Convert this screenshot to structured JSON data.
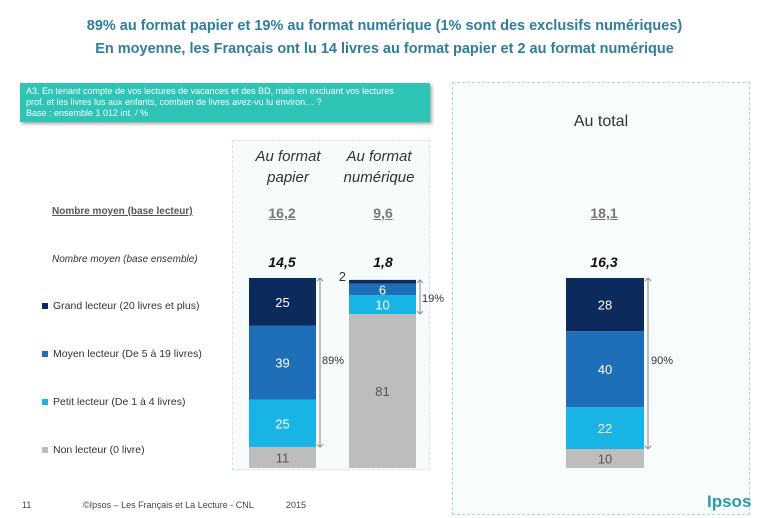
{
  "header": {
    "title_line1": "89% au format papier et 19% au format numérique (1% sont des exclusifs numériques)",
    "title_line2": "En moyenne, les Français ont lu 14 livres au format papier et 2 au format numérique"
  },
  "question": {
    "line1": "A3. En tenant compte de vos lectures de vacances et des BD, mais en excluant vos lectures",
    "line2": "prof. et les livres lus aux enfants, combien de livres avez-vu lu environ… ?",
    "line3": "Base : ensemble 1 012 int. / %"
  },
  "total_panel_title": "Au total",
  "row_labels": {
    "avg_reader": "Nombre moyen (base lecteur)",
    "avg_all": "Nombre moyen (base ensemble)"
  },
  "columns": [
    {
      "line1": "Au format",
      "line2": "papier",
      "avg_reader": "16,2",
      "avg_all": "14,5"
    },
    {
      "line1": "Au format",
      "line2": "numérique",
      "avg_reader": "9,6",
      "avg_all": "1,8"
    },
    {
      "line1": "",
      "line2": "",
      "avg_reader": "18,1",
      "avg_all": "16,3"
    }
  ],
  "legend": [
    {
      "label": "Grand lecteur (20 livres et plus)",
      "color": "#0d2a5c"
    },
    {
      "label": "Moyen lecteur (De 5 à 19 livres)",
      "color": "#1f6fb8"
    },
    {
      "label": "Petit lecteur (De 1 à 4 livres)",
      "color": "#19b4e6"
    },
    {
      "label": "Non lecteur (0 livre)",
      "color": "#bdbdbd"
    }
  ],
  "chart_data": {
    "type": "bar",
    "stacked": true,
    "categories": [
      "Au format papier",
      "Au format numérique",
      "Au total"
    ],
    "series": [
      {
        "name": "Non lecteur (0 livre)",
        "values": [
          11,
          81,
          10
        ],
        "color": "#bdbdbd"
      },
      {
        "name": "Petit lecteur (De 1 à 4 livres)",
        "values": [
          25,
          10,
          22
        ],
        "color": "#19b4e6"
      },
      {
        "name": "Moyen lecteur (De 5 à 19 livres)",
        "values": [
          39,
          6,
          40
        ],
        "color": "#1f6fb8"
      },
      {
        "name": "Grand lecteur (20 livres et plus)",
        "values": [
          25,
          2,
          28
        ],
        "color": "#0d2a5c"
      }
    ],
    "readers_share": [
      "89%",
      "19%",
      "90%"
    ],
    "ylim": [
      0,
      100
    ]
  },
  "footer": {
    "page": "11",
    "source": "©Ipsos – Les Français et La Lecture - CNL",
    "year": "2015",
    "logo": "Ipsos"
  }
}
